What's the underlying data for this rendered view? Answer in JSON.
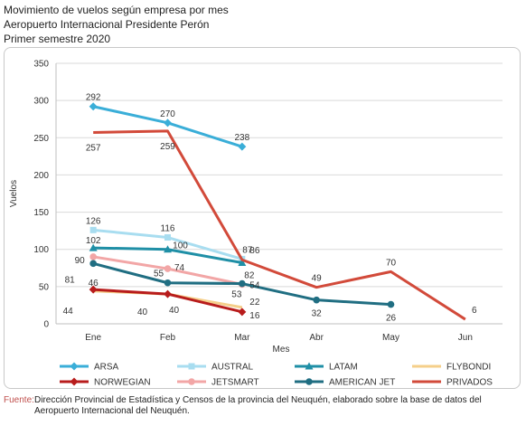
{
  "title": {
    "line1": "Movimiento de vuelos según empresa por mes",
    "line2": "Aeropuerto Internacional Presidente Perón",
    "line3": "Primer semestre 2020"
  },
  "source": {
    "label": "Fuente:",
    "text": "Dirección Provincial de Estadística y Censos de la provincia del Neuquén, elaborado sobre la base de datos del Aeropuerto Internacional del Neuquén."
  },
  "chart_data": {
    "type": "line",
    "categories": [
      "Ene",
      "Feb",
      "Mar",
      "Abr",
      "May",
      "Jun"
    ],
    "xlabel": "Mes",
    "ylabel": "Vuelos",
    "ylim": [
      0,
      350
    ],
    "yticks": [
      0,
      50,
      100,
      150,
      200,
      250,
      300,
      350
    ],
    "grid": true,
    "legend_placement": "bottom",
    "series": [
      {
        "name": "ARSA",
        "color": "#3aaed8",
        "marker": "diamond",
        "values": [
          292,
          270,
          238,
          null,
          null,
          null
        ],
        "labels": [
          "292",
          "270",
          "238",
          "",
          "",
          ""
        ]
      },
      {
        "name": "AUSTRAL",
        "color": "#a8ddf0",
        "marker": "square",
        "values": [
          126,
          116,
          87,
          null,
          null,
          null
        ],
        "labels": [
          "126",
          "116",
          "87",
          "",
          "",
          ""
        ]
      },
      {
        "name": "LATAM",
        "color": "#1f8fa6",
        "marker": "triangle",
        "values": [
          102,
          100,
          82,
          null,
          null,
          null
        ],
        "labels": [
          "102",
          "100",
          "82",
          "",
          "",
          ""
        ]
      },
      {
        "name": "FLYBONDI",
        "color": "#f5cf8a",
        "marker": "none",
        "values": [
          44,
          40,
          22,
          null,
          null,
          null
        ],
        "labels": [
          "44",
          "40",
          "22",
          "",
          "",
          ""
        ]
      },
      {
        "name": "NORWEGIAN",
        "color": "#b81c1c",
        "marker": "diamond",
        "values": [
          46,
          40,
          16,
          null,
          null,
          null
        ],
        "labels": [
          "46",
          "40",
          "16",
          "",
          "",
          ""
        ]
      },
      {
        "name": "JETSMART",
        "color": "#f2a6a6",
        "marker": "circle",
        "values": [
          90,
          74,
          53,
          null,
          null,
          null
        ],
        "labels": [
          "90",
          "74",
          "53",
          "",
          "",
          ""
        ]
      },
      {
        "name": "AMERICAN JET",
        "color": "#206e82",
        "marker": "circle",
        "values": [
          81,
          55,
          54,
          32,
          26,
          null
        ],
        "labels": [
          "81",
          "55",
          "54",
          "32",
          "26",
          ""
        ]
      },
      {
        "name": "PRIVADOS",
        "color": "#d24a3a",
        "marker": "none",
        "values": [
          257,
          259,
          86,
          49,
          70,
          6
        ],
        "labels": [
          "257",
          "259",
          "86",
          "49",
          "70",
          "6"
        ]
      }
    ]
  }
}
